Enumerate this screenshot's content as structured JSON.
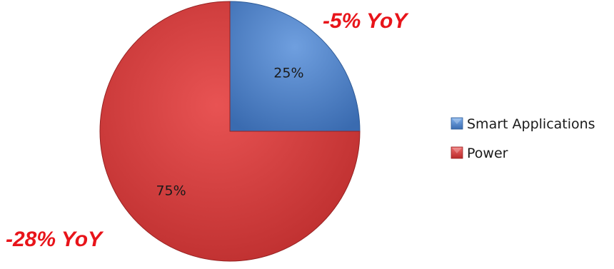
{
  "chart_data": {
    "type": "pie",
    "categories": [
      "Smart Applications",
      "Power"
    ],
    "values": [
      25,
      75
    ],
    "slice_labels": [
      "25%",
      "75%"
    ],
    "colors": [
      "#4a80c8",
      "#d43b3b"
    ],
    "legend_position": "right",
    "annotations": [
      {
        "text": "-5% YoY",
        "series": "Smart Applications",
        "color": "#e8141a"
      },
      {
        "text": "-28% YoY",
        "series": "Power",
        "color": "#e8141a"
      }
    ]
  }
}
